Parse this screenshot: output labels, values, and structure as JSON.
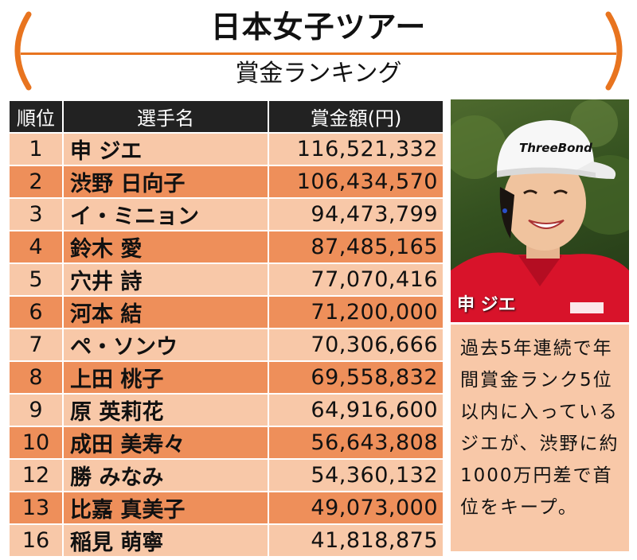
{
  "header": {
    "title": "日本女子ツアー",
    "subtitle": "賞金ランキング",
    "accent_color": "#e8741f"
  },
  "table": {
    "headers": [
      "順位",
      "選手名",
      "賞金額(円)"
    ],
    "rows": [
      {
        "rank": "1",
        "name": "申 ジエ",
        "amount": "116,521,332"
      },
      {
        "rank": "2",
        "name": "渋野 日向子",
        "amount": "106,434,570"
      },
      {
        "rank": "3",
        "name": "イ・ミニョン",
        "amount": "94,473,799"
      },
      {
        "rank": "4",
        "name": "鈴木 愛",
        "amount": "87,485,165"
      },
      {
        "rank": "5",
        "name": "穴井 詩",
        "amount": "77,070,416"
      },
      {
        "rank": "6",
        "name": "河本 結",
        "amount": "71,200,000"
      },
      {
        "rank": "7",
        "name": "ペ・ソンウ",
        "amount": "70,306,666"
      },
      {
        "rank": "8",
        "name": "上田 桃子",
        "amount": "69,558,832"
      },
      {
        "rank": "9",
        "name": "原 英莉花",
        "amount": "64,916,600"
      },
      {
        "rank": "10",
        "name": "成田 美寿々",
        "amount": "56,643,808"
      },
      {
        "rank": "12",
        "name": "勝 みなみ",
        "amount": "54,360,132"
      },
      {
        "rank": "13",
        "name": "比嘉 真美子",
        "amount": "49,073,000"
      },
      {
        "rank": "16",
        "name": "稲見 萌寧",
        "amount": "41,818,875"
      }
    ],
    "colors": {
      "header": "#222222",
      "row_light": "#f8c8a8",
      "row_dark": "#ee8f5a"
    }
  },
  "photo": {
    "caption": "申 ジエ",
    "cap_logo": "ThreeBond"
  },
  "comment": {
    "text": "過去5年連続で年間賞金ランク5位以内に入っているジエが、渋野に約1000万円差で首位をキープ。"
  }
}
